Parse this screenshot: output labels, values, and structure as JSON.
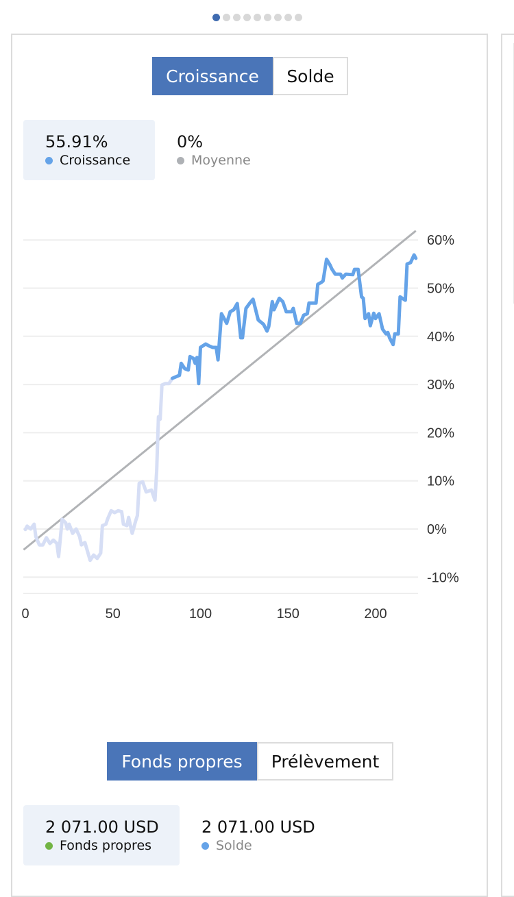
{
  "pager": {
    "count": 9,
    "active": 0
  },
  "top_toggle": {
    "options": [
      "Croissance",
      "Solde"
    ],
    "selected": "Croissance"
  },
  "top_stats": [
    {
      "value": "55.91%",
      "label": "Croissance",
      "color": "#65a3e8"
    },
    {
      "value": "0%",
      "label": "Moyenne",
      "color": "#aeb1b5"
    }
  ],
  "bottom_toggle": {
    "options": [
      "Fonds propres",
      "Prélèvement"
    ],
    "selected": "Fonds propres"
  },
  "bottom_stats": [
    {
      "value": "2 071.00 USD",
      "label": "Fonds propres",
      "color": "#72b444"
    },
    {
      "value": "2 071.00 USD",
      "label": "Solde",
      "color": "#65a3e8"
    }
  ],
  "chart_data": {
    "type": "line",
    "xlim": [
      0,
      223
    ],
    "ylim": [
      -10,
      60
    ],
    "x_ticks": [
      "0",
      "50",
      "100",
      "150",
      "200"
    ],
    "y_ticks": [
      "60%",
      "50%",
      "40%",
      "30%",
      "20%",
      "10%",
      "0%",
      "-10%"
    ],
    "grid": true,
    "colors": {
      "growth": "#65a3e8",
      "growth_faded": "#d6def5",
      "average": "#b1b3b6"
    },
    "series": [
      {
        "name": "Croissance",
        "faded_until_x": 84,
        "points": [
          [
            0,
            -0.1
          ],
          [
            1,
            0.6
          ],
          [
            3,
            0
          ],
          [
            5,
            1
          ],
          [
            6,
            -1.6
          ],
          [
            8,
            -3.3
          ],
          [
            10,
            -3.3
          ],
          [
            12,
            -1.8
          ],
          [
            14,
            -3
          ],
          [
            16,
            -2.3
          ],
          [
            18,
            -3
          ],
          [
            19,
            -5.7
          ],
          [
            21,
            2
          ],
          [
            23,
            1.3
          ],
          [
            24,
            0
          ],
          [
            25,
            1
          ],
          [
            27,
            -0.9
          ],
          [
            29,
            0
          ],
          [
            31,
            -1.6
          ],
          [
            32,
            -3.3
          ],
          [
            34,
            -2.8
          ],
          [
            35,
            -4
          ],
          [
            37,
            -6.5
          ],
          [
            39,
            -5.4
          ],
          [
            41,
            -6.1
          ],
          [
            43,
            -5
          ],
          [
            44,
            0.7
          ],
          [
            46,
            1
          ],
          [
            47,
            2.1
          ],
          [
            49,
            3.8
          ],
          [
            51,
            3.4
          ],
          [
            53,
            3.8
          ],
          [
            55,
            3.6
          ],
          [
            56,
            1
          ],
          [
            58,
            0.7
          ],
          [
            59,
            2.4
          ],
          [
            61,
            -0.9
          ],
          [
            63,
            1.7
          ],
          [
            64,
            2.8
          ],
          [
            65,
            9.5
          ],
          [
            67,
            9.8
          ],
          [
            69,
            7.7
          ],
          [
            72,
            8.1
          ],
          [
            74,
            6
          ],
          [
            75,
            12
          ],
          [
            76,
            23.3
          ],
          [
            77,
            22.8
          ],
          [
            78,
            29.9
          ],
          [
            80,
            30.2
          ],
          [
            82,
            30.2
          ],
          [
            84,
            31.3
          ],
          [
            88,
            31.9
          ],
          [
            89,
            34.4
          ],
          [
            91,
            33.3
          ],
          [
            93,
            33
          ],
          [
            94,
            35.8
          ],
          [
            96,
            35.4
          ],
          [
            97,
            34.4
          ],
          [
            98,
            35.6
          ],
          [
            99,
            30.2
          ],
          [
            100,
            37.7
          ],
          [
            103,
            38.4
          ],
          [
            105,
            38
          ],
          [
            107,
            37.7
          ],
          [
            109,
            37.7
          ],
          [
            110,
            35.1
          ],
          [
            112,
            44.7
          ],
          [
            115,
            42.7
          ],
          [
            117,
            45.1
          ],
          [
            119,
            45.5
          ],
          [
            121,
            46.8
          ],
          [
            123,
            39.7
          ],
          [
            124,
            39.7
          ],
          [
            126,
            45.8
          ],
          [
            128,
            46.8
          ],
          [
            130,
            47.7
          ],
          [
            133,
            43.4
          ],
          [
            136,
            42.5
          ],
          [
            138,
            41.1
          ],
          [
            139,
            42
          ],
          [
            141,
            47.2
          ],
          [
            142,
            45.5
          ],
          [
            145,
            47.9
          ],
          [
            147,
            47.2
          ],
          [
            149,
            45.1
          ],
          [
            152,
            45.1
          ],
          [
            153,
            45.8
          ],
          [
            155,
            42.7
          ],
          [
            157,
            42.7
          ],
          [
            159,
            44.4
          ],
          [
            161,
            44.7
          ],
          [
            162,
            46.9
          ],
          [
            166,
            46.9
          ],
          [
            167,
            50.8
          ],
          [
            169,
            51.2
          ],
          [
            170,
            51.5
          ],
          [
            172,
            56
          ],
          [
            174,
            54.8
          ],
          [
            175,
            54
          ],
          [
            177,
            52.9
          ],
          [
            180,
            52.9
          ],
          [
            181,
            52.1
          ],
          [
            183,
            52.9
          ],
          [
            187,
            52.8
          ],
          [
            188,
            53.9
          ],
          [
            190,
            53.9
          ],
          [
            192,
            48.2
          ],
          [
            193,
            47.9
          ],
          [
            194,
            43.7
          ],
          [
            196,
            44.7
          ],
          [
            197,
            42.2
          ],
          [
            199,
            44.8
          ],
          [
            200,
            43.7
          ],
          [
            202,
            44.7
          ],
          [
            204,
            41.5
          ],
          [
            206,
            40.5
          ],
          [
            207,
            40.8
          ],
          [
            208,
            39.7
          ],
          [
            210,
            38.3
          ],
          [
            211,
            40.5
          ],
          [
            213,
            40.5
          ],
          [
            214,
            48.2
          ],
          [
            217,
            47.5
          ],
          [
            218,
            55
          ],
          [
            220,
            55.3
          ],
          [
            222,
            56.9
          ],
          [
            223,
            56.2
          ]
        ]
      },
      {
        "name": "Moyenne",
        "points": [
          [
            -1,
            -4.3
          ],
          [
            223,
            61.9
          ]
        ]
      }
    ]
  }
}
